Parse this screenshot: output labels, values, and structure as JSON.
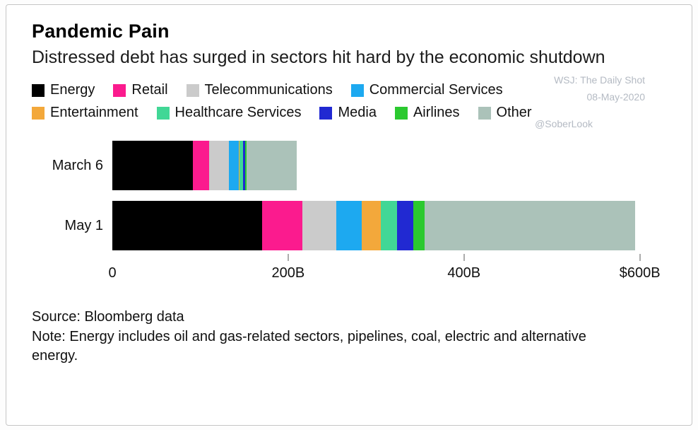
{
  "header": {
    "title": "Pandemic Pain",
    "subtitle": "Distressed debt has surged in sectors hit hard by the economic shutdown"
  },
  "watermark": {
    "line1": "WSJ: The Daily Shot",
    "line2": "08-May-2020",
    "handle": "@SoberLook"
  },
  "chart_data": {
    "type": "bar",
    "orientation": "horizontal",
    "stacked": true,
    "unit": "USD billions",
    "grid": false,
    "legend_position": "top",
    "categories": [
      "March 6",
      "May 1"
    ],
    "series": [
      {
        "name": "Energy",
        "color": "#000000",
        "values": [
          92,
          170
        ]
      },
      {
        "name": "Retail",
        "color": "#fb1b8e",
        "values": [
          18,
          46
        ]
      },
      {
        "name": "Telecommunications",
        "color": "#cbcbcb",
        "values": [
          23,
          39
        ]
      },
      {
        "name": "Commercial Services",
        "color": "#1da9f0",
        "values": [
          11,
          29
        ]
      },
      {
        "name": "Entertainment",
        "color": "#f3a83b",
        "values": [
          1,
          21
        ]
      },
      {
        "name": "Healthcare Services",
        "color": "#41d796",
        "values": [
          4,
          19
        ]
      },
      {
        "name": "Media",
        "color": "#2129d2",
        "values": [
          2,
          18
        ]
      },
      {
        "name": "Airlines",
        "color": "#2bc92f",
        "values": [
          2,
          13
        ]
      },
      {
        "name": "Other",
        "color": "#abc2b9",
        "values": [
          57,
          240
        ]
      }
    ],
    "totals": [
      210,
      595
    ],
    "x_ticks": [
      {
        "label": "0",
        "value": 0
      },
      {
        "label": "200B",
        "value": 200
      },
      {
        "label": "400B",
        "value": 400
      },
      {
        "label": "$600B",
        "value": 600
      }
    ],
    "xlim": [
      0,
      630
    ]
  },
  "footer": {
    "source": "Source: Bloomberg data",
    "note": "Note: Energy includes oil and gas-related sectors, pipelines, coal, electric and alternative energy."
  }
}
